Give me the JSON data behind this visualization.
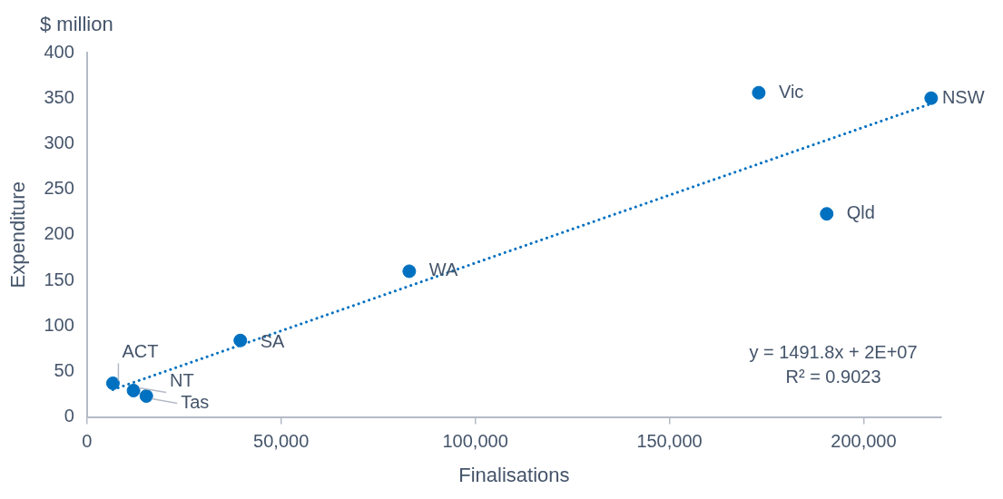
{
  "chart_data": {
    "type": "scatter",
    "xlabel": "Finalisations",
    "ylabel": "Expenditure",
    "xlim": [
      0,
      220000
    ],
    "xticks": [
      {
        "value": 0,
        "label": "0"
      },
      {
        "value": 50000,
        "label": "50,000"
      },
      {
        "value": 100000,
        "label": "100,000"
      },
      {
        "value": 150000,
        "label": "150,000"
      },
      {
        "value": 200000,
        "label": "200,000"
      }
    ],
    "ylim": [
      0,
      400
    ],
    "yticks": [
      0,
      50,
      100,
      150,
      200,
      250,
      300,
      350,
      400
    ],
    "grid": false,
    "legend": false,
    "marker": "circle",
    "series": [
      {
        "color": "#0070c0",
        "x": [
          217400,
          173000,
          190500,
          83000,
          39500,
          6700,
          12000,
          15300
        ],
        "values": [
          350,
          356,
          223,
          160,
          84,
          37,
          29,
          23
        ]
      },
      {
        "type": "line",
        "color": "#0070c0",
        "line_style": "dotted",
        "marker": "none",
        "x": [
          6700,
          217400
        ],
        "values": [
          30,
          344
        ]
      }
    ],
    "annotations": [
      {
        "text": "NSW",
        "x": 217400,
        "y": 350
      },
      {
        "text": "Vic",
        "x": 173000,
        "y": 356
      },
      {
        "text": "Qld",
        "x": 190500,
        "y": 223
      },
      {
        "text": "WA",
        "x": 83000,
        "y": 160
      },
      {
        "text": "SA",
        "x": 39500,
        "y": 84
      },
      {
        "text": "ACT",
        "x": 6700,
        "y": 37
      },
      {
        "text": "NT",
        "x": 12000,
        "y": 29
      },
      {
        "text": "Tas",
        "x": 15300,
        "y": 23
      },
      "$ million",
      "y = 1491.8x + 2E+07",
      "R² = 0.9023"
    ]
  }
}
